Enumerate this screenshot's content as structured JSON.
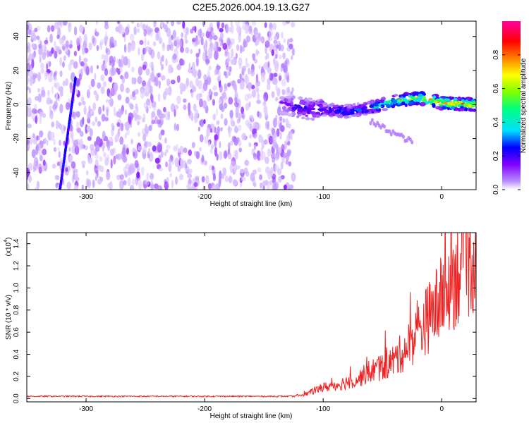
{
  "title": "C2E5.2026.004.19.13.G27",
  "chart_data": [
    {
      "type": "heatmap",
      "title": "C2E5.2026.004.19.13.G27",
      "xlabel": "Height of straight line (km)",
      "ylabel": "Frequency (Hz)",
      "xlim": [
        -350,
        29
      ],
      "ylim": [
        -50,
        49
      ],
      "xticks": [
        -300,
        -200,
        -100,
        0
      ],
      "yticks": [
        -40,
        -20,
        0,
        20,
        40
      ],
      "xtick_labels": [
        "-300",
        "-200",
        "-100",
        "0"
      ],
      "ytick_labels": [
        "-40",
        "-20",
        "0",
        "20",
        "40"
      ],
      "noise_region": {
        "x_from": -350,
        "x_to": -125,
        "dominant_color": "purple"
      },
      "streak": {
        "x": [
          -322,
          -309
        ],
        "y": [
          -50,
          15
        ],
        "color": "blue"
      },
      "signal_ridge": {
        "x": [
          -135,
          -120,
          -100,
          -80,
          -60,
          -40,
          -20,
          0,
          29
        ],
        "freq": [
          0,
          -2,
          -3,
          -4,
          -2,
          2,
          4,
          1,
          0
        ],
        "amplitude": [
          0.22,
          0.28,
          0.33,
          0.38,
          0.45,
          0.55,
          0.7,
          0.85,
          0.8
        ]
      },
      "faint_branch": {
        "x": [
          -60,
          -25
        ],
        "y": [
          -10,
          -22
        ]
      },
      "colorbar": {
        "label": "Normalized spectral amplitude",
        "range": [
          0,
          1
        ],
        "ticks": [
          0.0,
          0.2,
          0.4,
          0.6,
          0.8
        ],
        "tick_labels": [
          "0.0",
          "0.2",
          "0.4",
          "0.6",
          "0.8"
        ],
        "colors": [
          "#ffffff",
          "#b88cff",
          "#8000ff",
          "#0000ff",
          "#00e0ff",
          "#00ff80",
          "#80ff00",
          "#ffff00",
          "#ff8000",
          "#ff0000",
          "#ff00a0"
        ]
      }
    },
    {
      "type": "line",
      "xlabel": "Height of straight line (km)",
      "ylabel": "SNR (10 * v/v)",
      "scale_label": "(x10",
      "scale_exponent": "4",
      "xlim": [
        -350,
        29
      ],
      "ylim": [
        -0.03,
        1.5
      ],
      "xticks": [
        -300,
        -200,
        -100,
        0
      ],
      "yticks": [
        0.0,
        0.2,
        0.4,
        0.6,
        0.8,
        1.0,
        1.2,
        1.4
      ],
      "xtick_labels": [
        "-300",
        "-200",
        "-100",
        "0"
      ],
      "ytick_labels": [
        "0.0",
        "0.2",
        "0.4",
        "0.6",
        "0.8",
        "1.0",
        "1.2",
        "1.4"
      ],
      "series": [
        {
          "name": "SNR",
          "color": "#ee2222",
          "x": [
            -350,
            -300,
            -200,
            -125,
            -115,
            -105,
            -100,
            -90,
            -80,
            -70,
            -60,
            -50,
            -40,
            -30,
            -20,
            -10,
            0,
            5,
            10,
            15,
            20,
            29
          ],
          "y": [
            0.02,
            0.02,
            0.02,
            0.02,
            0.04,
            0.08,
            0.1,
            0.12,
            0.15,
            0.18,
            0.25,
            0.28,
            0.35,
            0.45,
            0.6,
            0.75,
            0.9,
            1.0,
            1.1,
            1.2,
            1.28,
            1.33
          ]
        }
      ]
    }
  ]
}
